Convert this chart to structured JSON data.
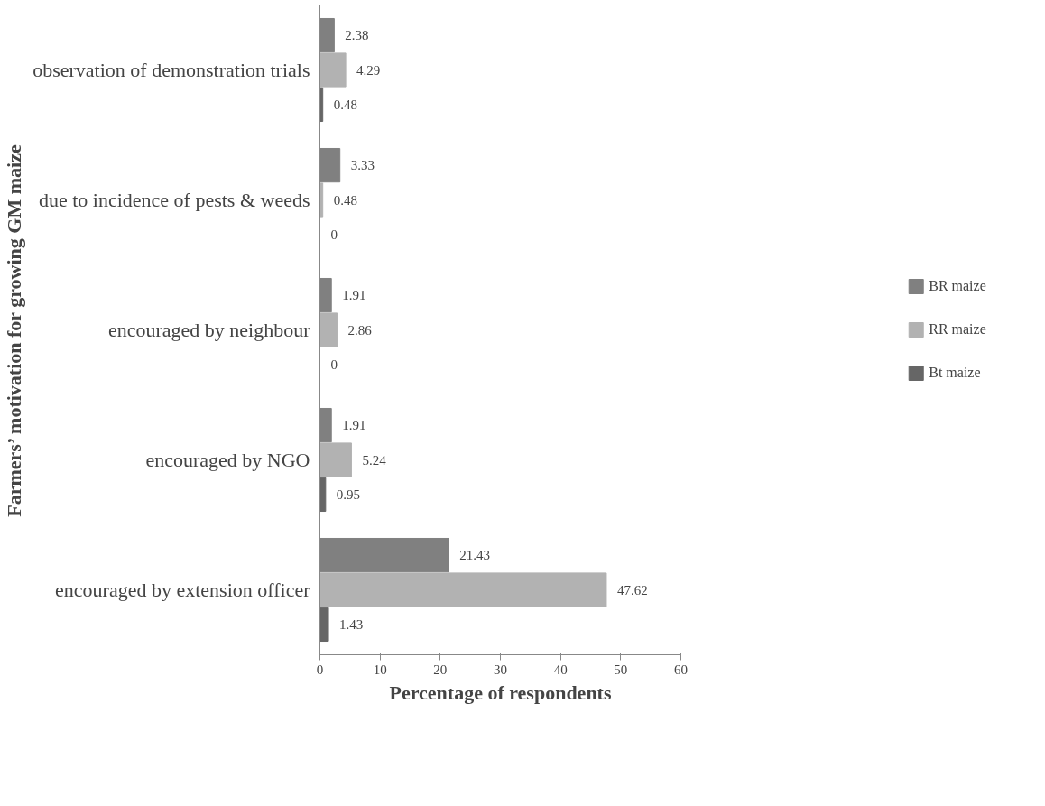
{
  "chart_data": {
    "type": "bar",
    "orientation": "horizontal",
    "xlabel": "Percentage of respondents",
    "ylabel": "Farmers’ motivation for growing GM maize",
    "categories": [
      "observation of demonstration trials",
      "due to incidence of pests & weeds",
      "encouraged by neighbour",
      "encouraged by NGO",
      "encouraged by extension officer"
    ],
    "series": [
      {
        "name": "BR maize",
        "color": "#808080",
        "values": [
          2.38,
          3.33,
          1.91,
          1.91,
          21.43
        ]
      },
      {
        "name": "RR maize",
        "color": "#b2b2b2",
        "values": [
          4.29,
          0.48,
          2.86,
          5.24,
          47.62
        ]
      },
      {
        "name": "Bt maize",
        "color": "#666666",
        "values": [
          0.48,
          0,
          0,
          0.95,
          1.43
        ]
      }
    ],
    "xlim": [
      0,
      60
    ],
    "xticks": [
      0,
      10,
      20,
      30,
      40,
      50,
      60
    ],
    "data_labels": true,
    "legend": "right",
    "grid": false
  }
}
